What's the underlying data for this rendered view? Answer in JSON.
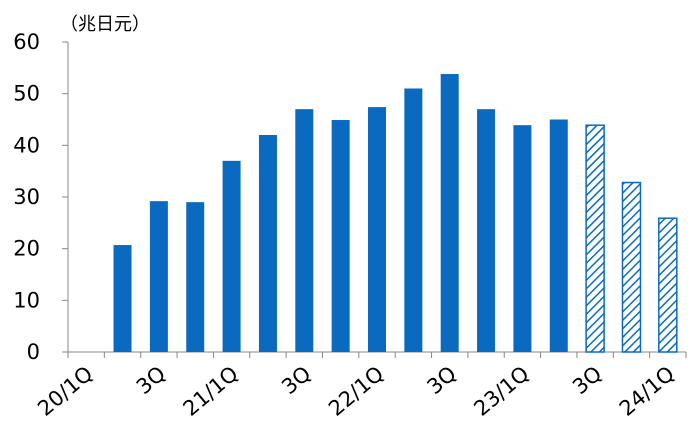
{
  "chart_data": {
    "type": "bar",
    "unit_label": "（兆日元）",
    "ylim": [
      0,
      60
    ],
    "yticks": [
      "0",
      "10",
      "20",
      "30",
      "40",
      "50",
      "60"
    ],
    "categories": [
      "20/1Q",
      "20/2Q",
      "3Q",
      "20/4Q",
      "21/1Q",
      "21/2Q",
      "3Q",
      "21/4Q",
      "22/1Q",
      "22/2Q",
      "3Q",
      "22/4Q",
      "23/1Q",
      "23/2Q",
      "3Q",
      "23/4Q",
      "24/1Q"
    ],
    "x_tick_labels": [
      "20/1Q",
      "3Q",
      "21/1Q",
      "3Q",
      "22/1Q",
      "3Q",
      "23/1Q",
      "3Q",
      "24/1Q"
    ],
    "values": [
      null,
      20.7,
      29.2,
      29.0,
      37.0,
      42.0,
      47.0,
      44.9,
      47.4,
      51.0,
      53.8,
      47.0,
      43.9,
      45.0,
      43.9,
      32.8,
      25.9
    ],
    "hatched_from_index": 14,
    "colors": {
      "bar": "#0a6ac0",
      "hatch": "#0a6ac0",
      "axis": "#888888"
    }
  }
}
